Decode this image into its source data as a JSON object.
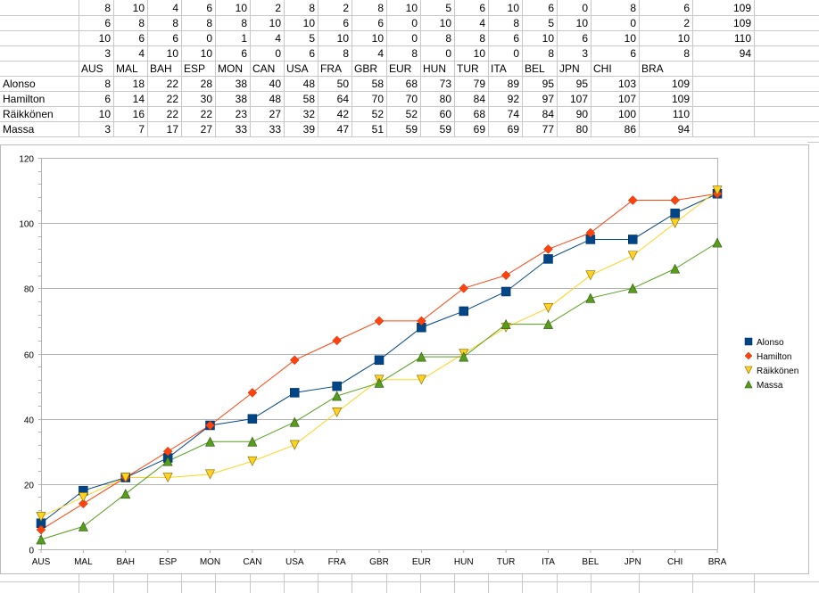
{
  "grid": {
    "row_labels": [
      "",
      "",
      "",
      "",
      "",
      "Alonso",
      "Hamilton",
      "Räikkönen",
      "Massa"
    ],
    "points_rows": [
      [
        8,
        10,
        4,
        6,
        10,
        2,
        8,
        2,
        8,
        10,
        5,
        6,
        10,
        6,
        0,
        8,
        6,
        109
      ],
      [
        6,
        8,
        8,
        8,
        8,
        10,
        10,
        6,
        6,
        0,
        10,
        4,
        8,
        5,
        10,
        0,
        2,
        109
      ],
      [
        10,
        6,
        6,
        0,
        1,
        4,
        5,
        10,
        10,
        0,
        8,
        8,
        6,
        10,
        6,
        10,
        10,
        110
      ],
      [
        3,
        4,
        10,
        10,
        6,
        0,
        6,
        8,
        4,
        8,
        0,
        10,
        0,
        8,
        3,
        6,
        8,
        94
      ]
    ],
    "header_row": [
      "AUS",
      "MAL",
      "BAH",
      "ESP",
      "MON",
      "CAN",
      "USA",
      "FRA",
      "GBR",
      "EUR",
      "HUN",
      "TUR",
      "ITA",
      "BEL",
      "JPN",
      "CHI",
      "BRA"
    ],
    "cumulative_rows": [
      [
        8,
        18,
        22,
        28,
        38,
        40,
        48,
        50,
        58,
        68,
        73,
        79,
        89,
        95,
        95,
        103,
        109
      ],
      [
        6,
        14,
        22,
        30,
        38,
        48,
        58,
        64,
        70,
        70,
        80,
        84,
        92,
        97,
        107,
        107,
        109
      ],
      [
        10,
        16,
        22,
        22,
        23,
        27,
        32,
        42,
        52,
        52,
        60,
        68,
        74,
        84,
        90,
        100,
        110
      ],
      [
        3,
        7,
        17,
        27,
        33,
        33,
        39,
        47,
        51,
        59,
        59,
        69,
        69,
        77,
        80,
        86,
        94
      ]
    ]
  },
  "chart_data": {
    "type": "line",
    "categories": [
      "AUS",
      "MAL",
      "BAH",
      "ESP",
      "MON",
      "CAN",
      "USA",
      "FRA",
      "GBR",
      "EUR",
      "HUN",
      "TUR",
      "ITA",
      "BEL",
      "JPN",
      "CHI",
      "BRA"
    ],
    "y_ticks": [
      "0",
      "20",
      "40",
      "60",
      "80",
      "100",
      "120"
    ],
    "ylim": [
      0,
      120
    ],
    "grid": true,
    "legend_position": "right",
    "series": [
      {
        "name": "Alonso",
        "color": "#004586",
        "marker": "square",
        "values": [
          8,
          18,
          22,
          28,
          38,
          40,
          48,
          50,
          58,
          68,
          73,
          79,
          89,
          95,
          95,
          103,
          109
        ]
      },
      {
        "name": "Hamilton",
        "color": "#ff420e",
        "marker": "diamond",
        "values": [
          6,
          14,
          22,
          30,
          38,
          48,
          58,
          64,
          70,
          70,
          80,
          84,
          92,
          97,
          107,
          107,
          109
        ]
      },
      {
        "name": "Räikkönen",
        "color": "#ffd320",
        "marker": "triangle-down",
        "values": [
          10,
          16,
          22,
          22,
          23,
          27,
          32,
          42,
          52,
          52,
          60,
          68,
          74,
          84,
          90,
          100,
          110
        ]
      },
      {
        "name": "Massa",
        "color": "#579d1c",
        "marker": "triangle-up",
        "values": [
          3,
          7,
          17,
          27,
          33,
          33,
          39,
          47,
          51,
          59,
          59,
          69,
          69,
          77,
          80,
          86,
          94
        ]
      }
    ]
  }
}
